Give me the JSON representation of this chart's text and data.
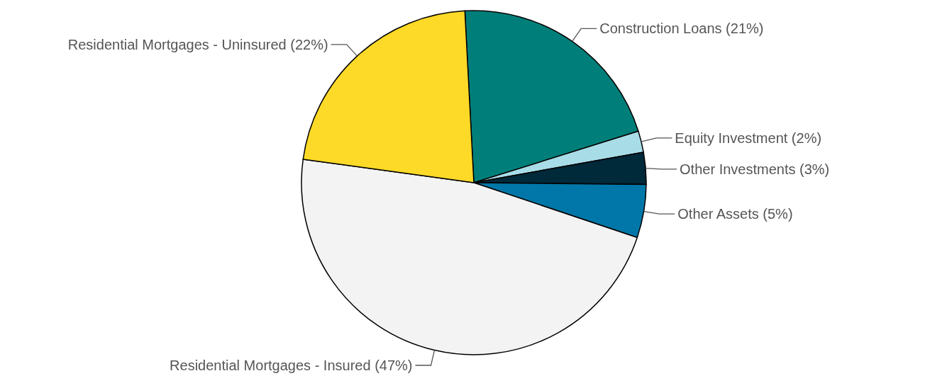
{
  "chart_data": {
    "type": "pie",
    "categories": [
      "Construction Loans (21%)",
      "Equity Investment (2%)",
      "Other Investments (3%)",
      "Other Assets (5%)",
      "Residential Mortgages - Insured (47%)",
      "Residential Mortgages - Uninsured (22%)"
    ],
    "values": [
      21,
      2,
      3,
      5,
      47,
      22
    ],
    "colors": [
      "#007f7a",
      "#a8dde8",
      "#00293a",
      "#0077a8",
      "#f2f3f2",
      "#fdd928"
    ],
    "legend": false
  }
}
